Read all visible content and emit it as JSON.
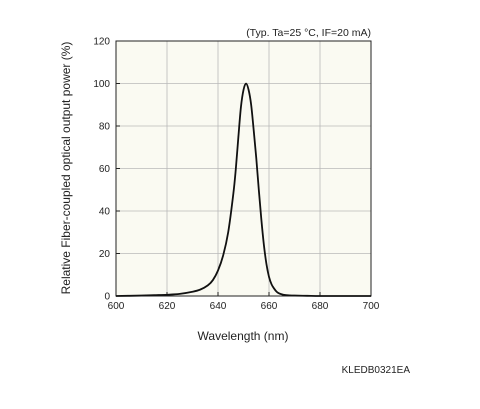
{
  "chart_data": {
    "type": "line",
    "xlabel": "Wavelength (nm)",
    "ylabel": "Relative Fiber-coupled optical output power (%)",
    "annotation": "(Typ. Ta=25 °C, IF=20 mA)",
    "code": "KLEDB0321EA",
    "xlim": [
      600,
      700
    ],
    "ylim": [
      0,
      120
    ],
    "xticks": [
      "600",
      "620",
      "640",
      "660",
      "680",
      "700"
    ],
    "yticks": [
      "0",
      "20",
      "40",
      "60",
      "80",
      "100",
      "120"
    ],
    "grid": true,
    "series": [
      {
        "x": [
          600,
          610,
          615,
          620,
          625,
          630,
          633,
          636,
          638,
          640,
          642,
          644,
          646,
          647,
          648,
          649,
          650,
          651,
          652,
          653,
          654,
          655,
          656,
          657,
          658,
          659,
          660,
          661,
          662,
          663,
          664,
          665,
          666,
          668,
          670,
          675,
          680,
          690,
          700
        ],
        "y": [
          0,
          0.2,
          0.4,
          0.6,
          1,
          2,
          3,
          5,
          7.5,
          12,
          19,
          30,
          48,
          60,
          75,
          89,
          97,
          100,
          97,
          90,
          78,
          65,
          50,
          36,
          24,
          15,
          9,
          5.5,
          3.5,
          2,
          1.2,
          0.8,
          0.5,
          0.3,
          0.2,
          0.1,
          0,
          0,
          0
        ],
        "color": "#111111"
      }
    ]
  }
}
